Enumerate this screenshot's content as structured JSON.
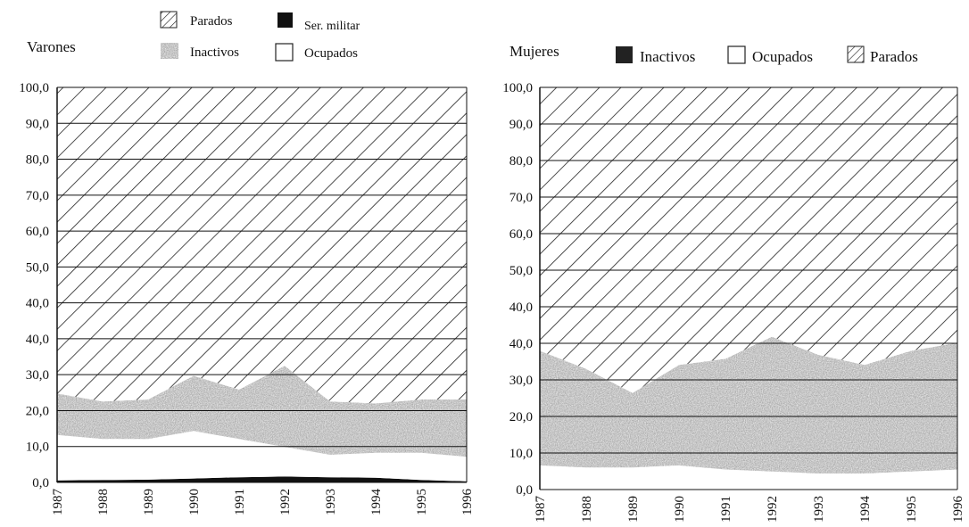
{
  "chart_data": [
    {
      "type": "area",
      "title": "Varones",
      "xlabel": "",
      "ylabel": "",
      "stacked": true,
      "ylim": [
        0,
        100
      ],
      "y_tick_labels": [
        "0,0",
        "10,0",
        "20,0",
        "30,0",
        "40,0",
        "40,0",
        "50,0",
        "60,0",
        "70,0",
        "80,0",
        "90,0",
        "100,0"
      ],
      "x": [
        "1987",
        "1988",
        "1989",
        "1990",
        "1991",
        "1992",
        "1993",
        "1994",
        "1995",
        "1996"
      ],
      "legend": [
        {
          "name": "Parados",
          "swatch": "hatch"
        },
        {
          "name": "Ser. militar",
          "swatch": "black"
        },
        {
          "name": "Inactivos",
          "swatch": "grey"
        },
        {
          "name": "Ocupados",
          "swatch": "white"
        }
      ],
      "series": [
        {
          "name": "Ser. militar",
          "values": [
            0.5,
            0.6,
            0.7,
            1.0,
            1.3,
            1.5,
            1.3,
            1.2,
            0.6,
            0.3
          ]
        },
        {
          "name": "Ocupados",
          "values": [
            11.5,
            10.4,
            10.3,
            12.0,
            9.7,
            7.5,
            5.7,
            6.3,
            6.9,
            6.2
          ]
        },
        {
          "name": "Inactivos",
          "values": [
            10.5,
            9.5,
            10.0,
            14.0,
            12.5,
            20.5,
            13.5,
            12.5,
            13.5,
            14.5
          ]
        },
        {
          "name": "Parados",
          "values": [
            77.5,
            79.5,
            79.0,
            73.0,
            76.5,
            70.5,
            79.5,
            80.0,
            79.0,
            79.0
          ]
        }
      ],
      "colors": {
        "inactivos": "#4a4a4a",
        "ser_militar": "#111111",
        "ocupados": "#ffffff",
        "parados_hatch": "#222222"
      }
    },
    {
      "type": "area",
      "title": "Mujeres",
      "xlabel": "",
      "ylabel": "",
      "stacked": true,
      "ylim": [
        0,
        100
      ],
      "y_tick_labels": [
        "0,0",
        "10,0",
        "20,0",
        "30,0",
        "40,0",
        "40,0",
        "50,0",
        "60,0",
        "70,0",
        "80,0",
        "90,0",
        "100,0"
      ],
      "x": [
        "1987",
        "1988",
        "1989",
        "1990",
        "1991",
        "1992",
        "1993",
        "1994",
        "1995",
        "1996"
      ],
      "legend": [
        {
          "name": "Inactivos",
          "swatch": "black"
        },
        {
          "name": "Ocupados",
          "swatch": "white"
        },
        {
          "name": "Parados",
          "swatch": "hatch"
        }
      ],
      "series": [
        {
          "name": "Ocupados",
          "values": [
            6.0,
            5.5,
            5.5,
            6.0,
            5.0,
            4.5,
            4.0,
            4.0,
            4.5,
            5.0
          ]
        },
        {
          "name": "Inactivos",
          "values": [
            28.5,
            24.5,
            18.5,
            25.0,
            27.5,
            33.5,
            29.5,
            27.0,
            30.0,
            31.5
          ]
        },
        {
          "name": "Parados",
          "values": [
            65.5,
            70.0,
            76.0,
            69.0,
            67.5,
            62.0,
            66.5,
            69.0,
            65.5,
            63.5
          ]
        }
      ],
      "colors": {
        "inactivos": "#4a4a4a",
        "ocupados": "#ffffff",
        "parados_hatch": "#222222"
      }
    }
  ]
}
